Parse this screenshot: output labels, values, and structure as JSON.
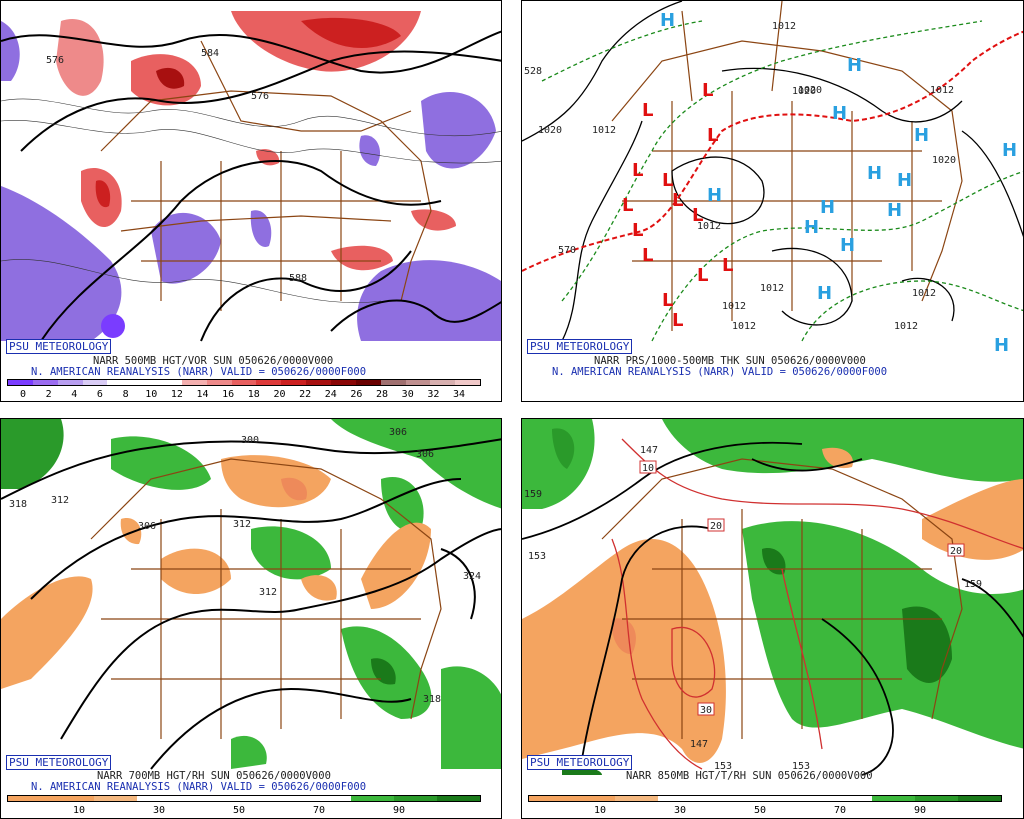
{
  "panels": [
    {
      "logo": "PSU METEOROLOGY",
      "line1": "NARR 500MB HGT/VOR SUN 050626/0000V000",
      "line2": "N. AMERICAN REANALYSIS (NARR) VALID = 050626/0000F000",
      "contour_labels": [
        "576",
        "584",
        "576",
        "588"
      ],
      "colorbar": {
        "colors": [
          "#7a3cff",
          "#9b6cf0",
          "#b89ef0",
          "#d9ccf5",
          "#ffffff",
          "#ffffff",
          "#ffffff",
          "#f4b0b0",
          "#ee8a8a",
          "#e86060",
          "#de3a3a",
          "#cc2020",
          "#a81010",
          "#8a0606",
          "#6a0000",
          "#a07070",
          "#c09090",
          "#d8b0b0",
          "#f0c8c8"
        ],
        "ticks": [
          "0",
          "2",
          "4",
          "6",
          "8",
          "10",
          "12",
          "14",
          "16",
          "18",
          "20",
          "22",
          "24",
          "26",
          "28",
          "30",
          "32",
          "34"
        ]
      }
    },
    {
      "logo": "PSU METEOROLOGY",
      "line1": "NARR PRS/1000-500MB THK SUN 050626/0000V000",
      "line2": "N. AMERICAN REANALYSIS (NARR) VALID = 050626/0000F000",
      "contour_labels": [
        "1012",
        "1020",
        "1020",
        "1012",
        "1020",
        "1012",
        "1012",
        "1012",
        "1012",
        "1012",
        "1012",
        "1012",
        "1020",
        "570",
        "528"
      ]
    },
    {
      "logo": "PSU METEOROLOGY",
      "line1": "NARR 700MB HGT/RH SUN 050626/0000V000",
      "line2": "N. AMERICAN REANALYSIS (NARR) VALID = 050626/0000F000",
      "contour_labels": [
        "300",
        "306",
        "312",
        "306",
        "312",
        "318",
        "312",
        "324",
        "318",
        "306"
      ],
      "colorbar": {
        "colors": [
          "#f4a460",
          "#f4a460",
          "#f4b880",
          "#ffffff",
          "#ffffff",
          "#ffffff",
          "#ffffff",
          "#ffffff",
          "#3cb83c",
          "#2a9a2a",
          "#1a7a1a"
        ],
        "ticks": [
          "10",
          "30",
          "50",
          "70",
          "90"
        ]
      }
    },
    {
      "logo": "PSU METEOROLOGY",
      "line1": "NARR 850MB HGT/T/RH SUN 050626/0000V000",
      "contour_labels": [
        "147",
        "153",
        "159",
        "153",
        "147",
        "153",
        "159"
      ],
      "temp_labels": [
        "10",
        "20",
        "20",
        "30"
      ],
      "colorbar": {
        "colors": [
          "#f4a460",
          "#f4a460",
          "#f4b880",
          "#ffffff",
          "#ffffff",
          "#ffffff",
          "#ffffff",
          "#ffffff",
          "#3cb83c",
          "#2a9a2a",
          "#1a7a1a"
        ],
        "ticks": [
          "10",
          "30",
          "50",
          "70",
          "90"
        ]
      }
    }
  ]
}
